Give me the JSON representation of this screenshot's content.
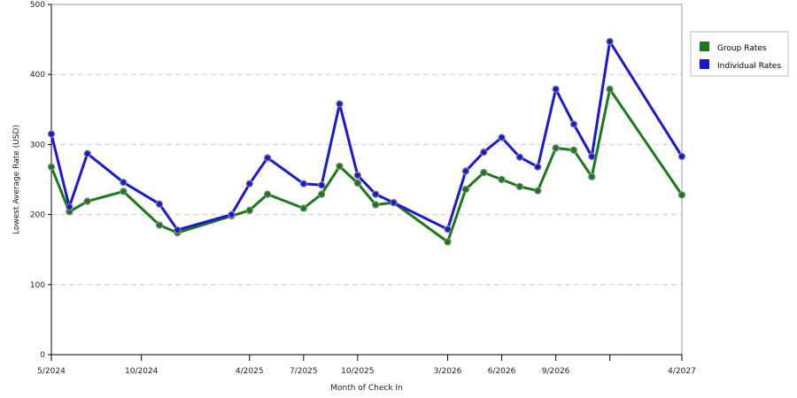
{
  "chart_data": {
    "type": "line",
    "xlabel": "Month of Check In",
    "ylabel": "Lowest Average Rate (USD)",
    "ylim": [
      0,
      500
    ],
    "yticks": [
      0,
      100,
      200,
      300,
      400,
      500
    ],
    "grid": "horizontal dashed",
    "legend_position": "right",
    "x": [
      "5/2024",
      "6/2024",
      "7/2024",
      "8/2024",
      "9/2024",
      "10/2024",
      "11/2024",
      "12/2024",
      "1/2025",
      "2/2025",
      "3/2025",
      "4/2025",
      "5/2025",
      "6/2025",
      "7/2025",
      "8/2025",
      "9/2025",
      "10/2025",
      "11/2025",
      "12/2025",
      "1/2026",
      "2/2026",
      "3/2026",
      "4/2026",
      "5/2026",
      "6/2026",
      "7/2026",
      "8/2026",
      "9/2026",
      "10/2026",
      "11/2026",
      "12/2026",
      "1/2027",
      "2/2027",
      "3/2027",
      "4/2027"
    ],
    "x_tick_labels": [
      {
        "x": "5/2024",
        "label": "5/2024"
      },
      {
        "x": "10/2024",
        "label": "10/2024"
      },
      {
        "x": "4/2025",
        "label": "4/2025"
      },
      {
        "x": "7/2025",
        "label": "7/2025"
      },
      {
        "x": "10/2025",
        "label": "10/2025"
      },
      {
        "x": "3/2026",
        "label": "3/2026"
      },
      {
        "x": "6/2026",
        "label": "6/2026"
      },
      {
        "x": "9/2026",
        "label": "9/2026"
      },
      {
        "x": "4/2027",
        "label": "4/2027"
      }
    ],
    "x_ticks_unlabeled": [
      "12/2026"
    ],
    "series": [
      {
        "name": "Group Rates",
        "color": "#1a7a1a",
        "points": [
          {
            "x": "5/2024",
            "y": 268
          },
          {
            "x": "6/2024",
            "y": 204
          },
          {
            "x": "7/2024",
            "y": 219
          },
          {
            "x": "9/2024",
            "y": 233
          },
          {
            "x": "11/2024",
            "y": 185
          },
          {
            "x": "12/2024",
            "y": 174
          },
          {
            "x": "3/2025",
            "y": 198
          },
          {
            "x": "4/2025",
            "y": 206
          },
          {
            "x": "5/2025",
            "y": 229
          },
          {
            "x": "7/2025",
            "y": 209
          },
          {
            "x": "8/2025",
            "y": 229
          },
          {
            "x": "9/2025",
            "y": 269
          },
          {
            "x": "10/2025",
            "y": 245
          },
          {
            "x": "11/2025",
            "y": 214
          },
          {
            "x": "12/2025",
            "y": 217
          },
          {
            "x": "3/2026",
            "y": 161
          },
          {
            "x": "4/2026",
            "y": 236
          },
          {
            "x": "5/2026",
            "y": 260
          },
          {
            "x": "6/2026",
            "y": 250
          },
          {
            "x": "7/2026",
            "y": 240
          },
          {
            "x": "8/2026",
            "y": 234
          },
          {
            "x": "9/2026",
            "y": 295
          },
          {
            "x": "10/2026",
            "y": 292
          },
          {
            "x": "11/2026",
            "y": 254
          },
          {
            "x": "12/2026",
            "y": 379
          },
          {
            "x": "4/2027",
            "y": 228
          }
        ]
      },
      {
        "name": "Individual Rates",
        "color": "#1a1acc",
        "points": [
          {
            "x": "5/2024",
            "y": 315
          },
          {
            "x": "6/2024",
            "y": 211
          },
          {
            "x": "7/2024",
            "y": 287
          },
          {
            "x": "9/2024",
            "y": 246
          },
          {
            "x": "11/2024",
            "y": 215
          },
          {
            "x": "12/2024",
            "y": 178
          },
          {
            "x": "3/2025",
            "y": 200
          },
          {
            "x": "4/2025",
            "y": 244
          },
          {
            "x": "5/2025",
            "y": 281
          },
          {
            "x": "7/2025",
            "y": 244
          },
          {
            "x": "8/2025",
            "y": 242
          },
          {
            "x": "9/2025",
            "y": 358
          },
          {
            "x": "10/2025",
            "y": 256
          },
          {
            "x": "11/2025",
            "y": 229
          },
          {
            "x": "12/2025",
            "y": 217
          },
          {
            "x": "3/2026",
            "y": 179
          },
          {
            "x": "4/2026",
            "y": 262
          },
          {
            "x": "5/2026",
            "y": 289
          },
          {
            "x": "6/2026",
            "y": 310
          },
          {
            "x": "7/2026",
            "y": 282
          },
          {
            "x": "8/2026",
            "y": 268
          },
          {
            "x": "9/2026",
            "y": 379
          },
          {
            "x": "10/2026",
            "y": 329
          },
          {
            "x": "11/2026",
            "y": 283
          },
          {
            "x": "12/2026",
            "y": 447
          },
          {
            "x": "4/2027",
            "y": 283
          }
        ]
      }
    ]
  }
}
